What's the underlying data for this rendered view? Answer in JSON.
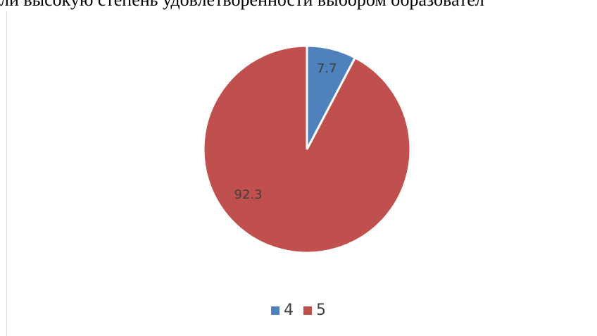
{
  "page": {
    "top_text": "ли высокую степень удовлетворенности выбором образовател"
  },
  "chart_data": {
    "type": "pie",
    "title": "",
    "categories": [
      "4",
      "5"
    ],
    "values": [
      7.7,
      92.3
    ],
    "data_labels": [
      "7.7",
      "92.3"
    ],
    "colors": [
      "#4f81bd",
      "#c0504d"
    ],
    "start_angle_deg": 0,
    "direction": "clockwise",
    "legend_position": "bottom"
  }
}
